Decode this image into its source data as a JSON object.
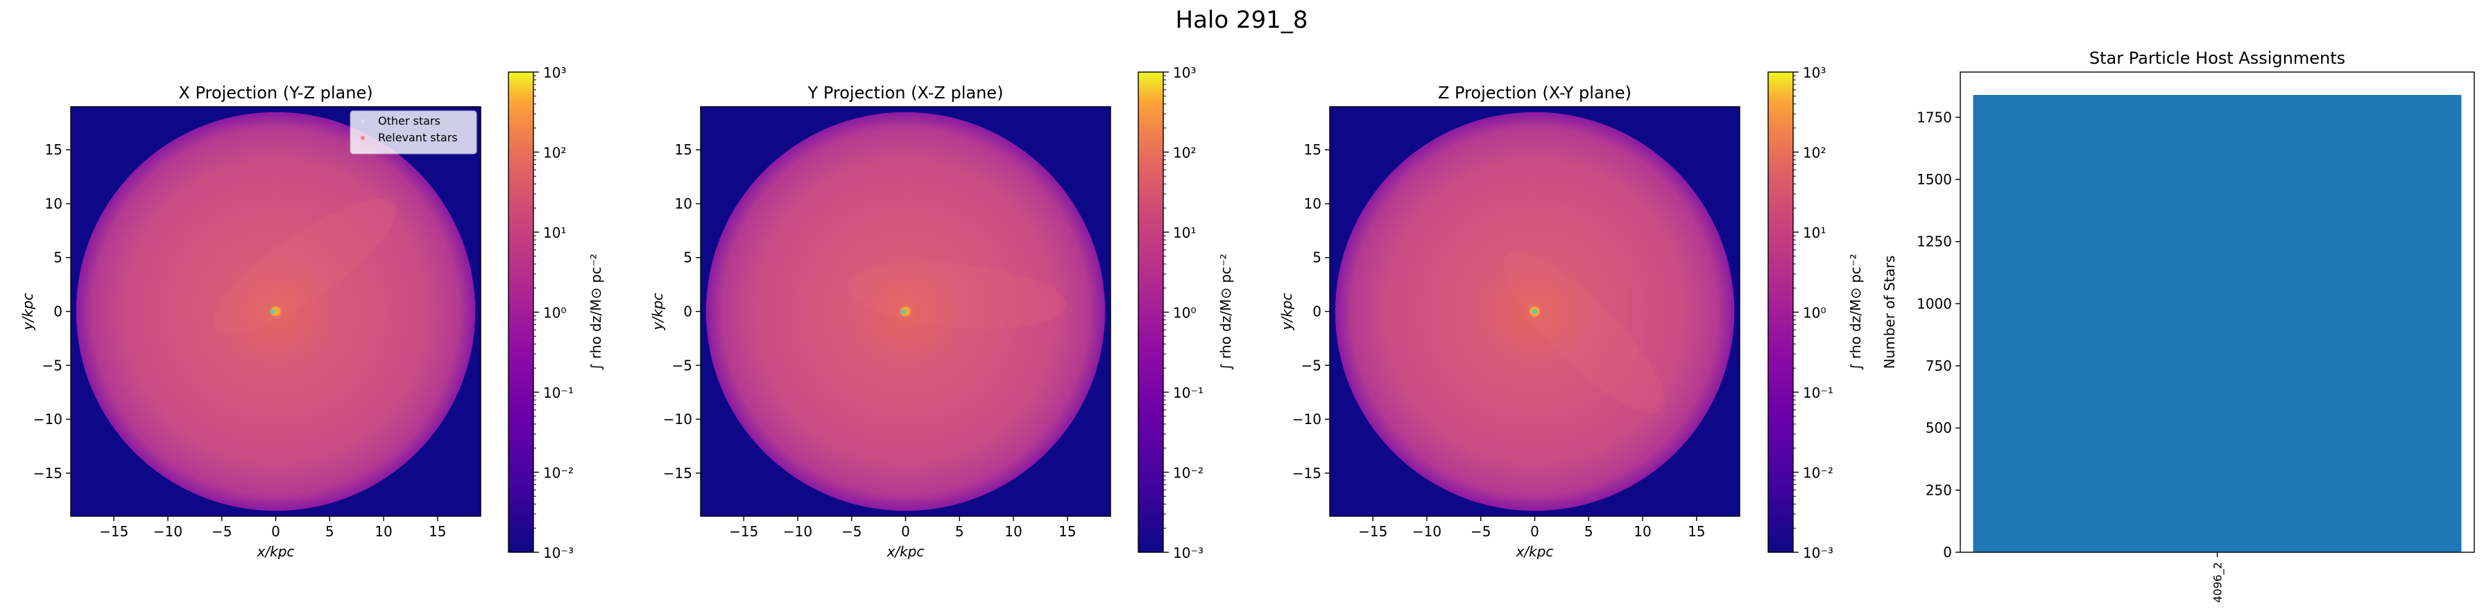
{
  "figure": {
    "suptitle": "Halo 291_8"
  },
  "chart_data": [
    {
      "type": "heatmap",
      "title": "X Projection (Y-Z plane)",
      "xlabel": "x/kpc",
      "ylabel": "y/kpc",
      "xlim": [
        -19,
        19
      ],
      "ylim": [
        -19,
        19
      ],
      "xticks": [
        -15,
        -10,
        -5,
        0,
        5,
        10,
        15
      ],
      "yticks": [
        -15,
        -10,
        -5,
        0,
        5,
        10,
        15
      ],
      "colorbar": {
        "label": "∫ rho dz/M⊙ pc⁻²",
        "scale": "log",
        "range": [
          0.001,
          1000
        ],
        "ticks": [
          "10⁻³",
          "10⁻²",
          "10⁻¹",
          "10⁰",
          "10¹",
          "10²",
          "10³"
        ],
        "colormap": "plasma"
      },
      "disk_radius_kpc": 18.5,
      "markers": [
        {
          "name": "Relevant stars",
          "x": -0.3,
          "y": 0
        }
      ],
      "legend": {
        "placement": "top-right",
        "entries": [
          {
            "label": "Other stars",
            "color": "#d9d9ff"
          },
          {
            "label": "Relevant stars",
            "color": "#ff7f7f"
          }
        ]
      }
    },
    {
      "type": "heatmap",
      "title": "Y Projection (X-Z plane)",
      "xlabel": "x/kpc",
      "ylabel": "y/kpc",
      "xlim": [
        -19,
        19
      ],
      "ylim": [
        -19,
        19
      ],
      "xticks": [
        -15,
        -10,
        -5,
        0,
        5,
        10,
        15
      ],
      "yticks": [
        -15,
        -10,
        -5,
        0,
        5,
        10,
        15
      ],
      "colorbar": {
        "label": "∫ rho dz/M⊙ pc⁻²",
        "scale": "log",
        "range": [
          0.001,
          1000
        ],
        "ticks": [
          "10⁻³",
          "10⁻²",
          "10⁻¹",
          "10⁰",
          "10¹",
          "10²",
          "10³"
        ],
        "colormap": "plasma"
      },
      "disk_radius_kpc": 18.5,
      "markers": [
        {
          "name": "Relevant stars",
          "x": -0.2,
          "y": 0
        }
      ]
    },
    {
      "type": "heatmap",
      "title": "Z Projection (X-Y plane)",
      "xlabel": "x/kpc",
      "ylabel": "y/kpc",
      "xlim": [
        -19,
        19
      ],
      "ylim": [
        -19,
        19
      ],
      "xticks": [
        -15,
        -10,
        -5,
        0,
        5,
        10,
        15
      ],
      "yticks": [
        -15,
        -10,
        -5,
        0,
        5,
        10,
        15
      ],
      "colorbar": {
        "label": "∫ rho dz/M⊙ pc⁻²",
        "scale": "log",
        "range": [
          0.001,
          1000
        ],
        "ticks": [
          "10⁻³",
          "10⁻²",
          "10⁻¹",
          "10⁰",
          "10¹",
          "10²",
          "10³"
        ],
        "colormap": "plasma"
      },
      "disk_radius_kpc": 18.5,
      "markers": [
        {
          "name": "Relevant stars",
          "x": 0,
          "y": 0
        }
      ]
    },
    {
      "type": "bar",
      "title": "Star Particle Host Assignments",
      "xlabel": "",
      "ylabel": "Number of Stars",
      "categories": [
        "4096_2"
      ],
      "values": [
        1840
      ],
      "ylim": [
        0,
        1932
      ],
      "yticks": [
        0,
        250,
        500,
        750,
        1000,
        1250,
        1500,
        1750
      ],
      "color": "#1f77b4"
    }
  ],
  "colors": {
    "plasma_low": "#0d0887",
    "plasma_high": "#f0f921",
    "disk_base": "#d75a7a",
    "bar": "#1f77b4",
    "marker": "#4fd1b0"
  }
}
